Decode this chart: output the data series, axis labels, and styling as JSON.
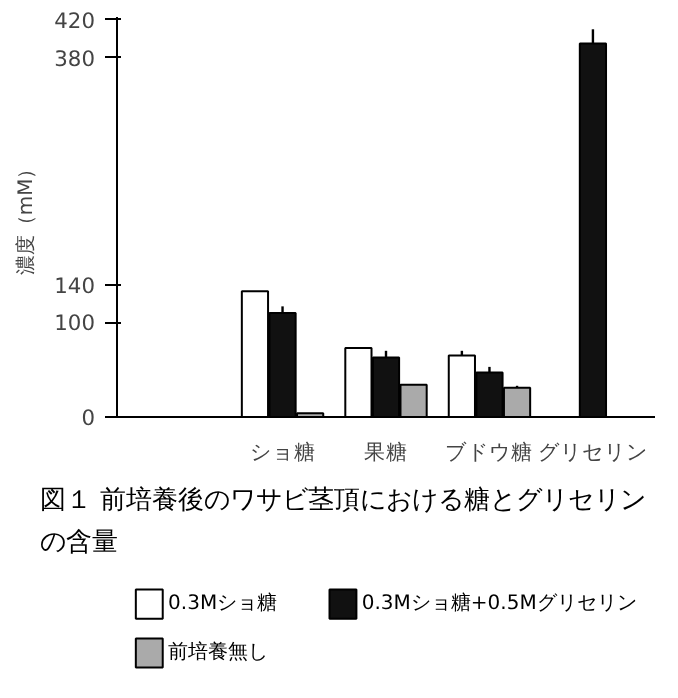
{
  "chart_data": {
    "type": "bar",
    "categories": [
      "ショ糖",
      "果糖",
      "ブドウ糖",
      "グリセリン"
    ],
    "ylim": [
      0,
      423
    ],
    "yticks": [
      0,
      100,
      140,
      380,
      420
    ],
    "ylabel": "濃度（mM）",
    "grid": false,
    "legend": "bottom",
    "title": "図１ 前培養後のワサビ茎頂における糖とグリセリンの含量",
    "series": [
      {
        "name": "0.3Mショ糖",
        "color": "#ffffff",
        "values": [
          133,
          73,
          65,
          null
        ],
        "errors": [
          null,
          null,
          [
            65,
            70
          ],
          null
        ]
      },
      {
        "name": "0.3Mショ糖+0.5Mグリセリン",
        "color": "#111111",
        "values": [
          110,
          63,
          47,
          395
        ],
        "errors": [
          [
            110,
            117
          ],
          [
            63,
            70
          ],
          [
            47,
            53
          ],
          [
            395,
            410
          ]
        ]
      },
      {
        "name": "前培養無し",
        "color": "#aaaaaa",
        "values": [
          4,
          34,
          31,
          null
        ],
        "errors": [
          null,
          null,
          [
            31,
            33
          ],
          null
        ]
      }
    ]
  }
}
